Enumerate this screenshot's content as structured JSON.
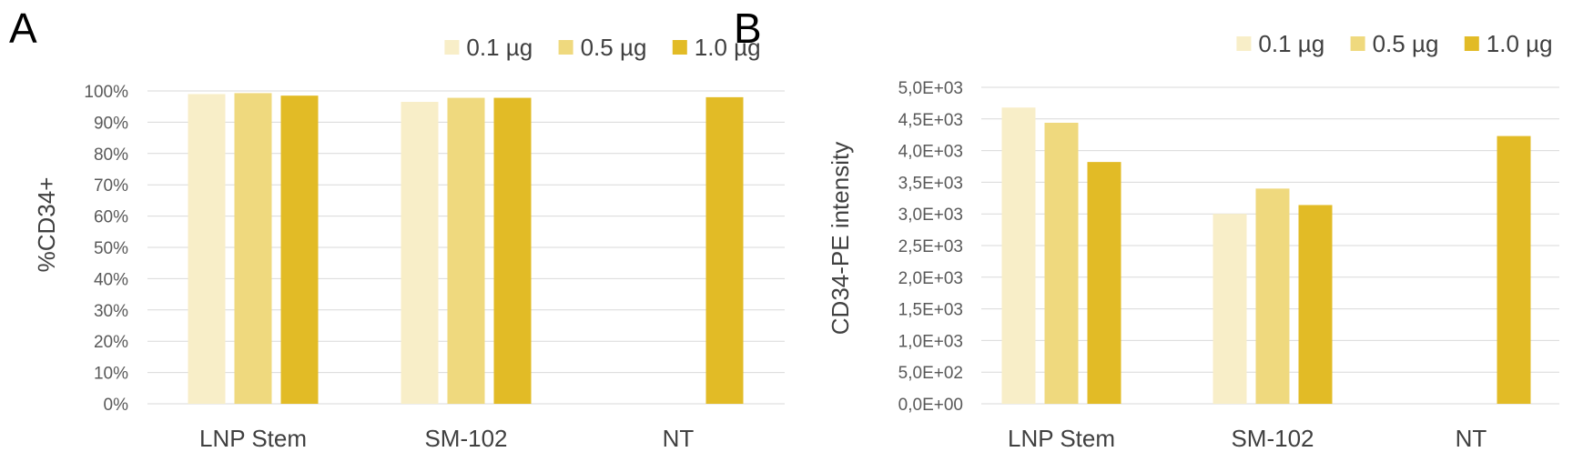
{
  "panels": [
    {
      "letter": "A"
    },
    {
      "letter": "B"
    }
  ],
  "series_colors": [
    "#f8eec8",
    "#efd97e",
    "#e2bb26"
  ],
  "chart_data": [
    {
      "type": "bar",
      "categories": [
        "LNP Stem",
        "SM-102",
        "NT"
      ],
      "series": [
        {
          "name": "0.1 µg",
          "values": [
            0.99,
            0.965,
            null
          ]
        },
        {
          "name": "0.5 µg",
          "values": [
            0.993,
            0.978,
            null
          ]
        },
        {
          "name": "1.0 µg",
          "values": [
            0.985,
            0.978,
            0.98
          ]
        }
      ],
      "ylabel": "%CD34+",
      "ylim": [
        0,
        1
      ],
      "yticks": [
        0,
        0.1,
        0.2,
        0.3,
        0.4,
        0.5,
        0.6,
        0.7,
        0.8,
        0.9,
        1.0
      ],
      "ytick_labels": [
        "0%",
        "10%",
        "20%",
        "30%",
        "40%",
        "50%",
        "60%",
        "70%",
        "80%",
        "90%",
        "100%"
      ],
      "grid": true,
      "legend": "top-right"
    },
    {
      "type": "bar",
      "categories": [
        "LNP Stem",
        "SM-102",
        "NT"
      ],
      "series": [
        {
          "name": "0.1 µg",
          "values": [
            4680,
            3000,
            null
          ]
        },
        {
          "name": "0.5 µg",
          "values": [
            4440,
            3400,
            null
          ]
        },
        {
          "name": "1.0 µg",
          "values": [
            3820,
            3140,
            4230
          ]
        }
      ],
      "ylabel": "CD34-PE intensity",
      "ylim": [
        0,
        5000
      ],
      "yticks": [
        0,
        500,
        1000,
        1500,
        2000,
        2500,
        3000,
        3500,
        4000,
        4500,
        5000
      ],
      "ytick_labels": [
        "0,0E+00",
        "5,0E+02",
        "1,0E+03",
        "1,5E+03",
        "2,0E+03",
        "2,5E+03",
        "3,0E+03",
        "3,5E+03",
        "4,0E+03",
        "4,5E+03",
        "5,0E+03"
      ],
      "grid": true,
      "legend": "top-right"
    }
  ]
}
